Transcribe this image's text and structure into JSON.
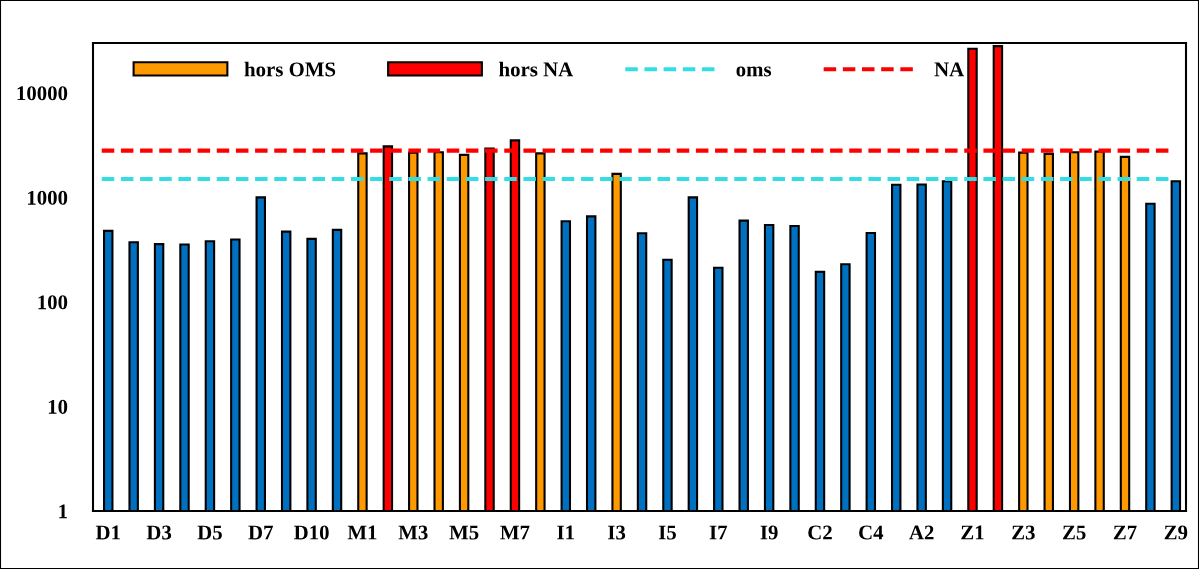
{
  "chart_data": {
    "type": "bar",
    "categories": [
      "D1",
      null,
      "D3",
      null,
      "D5",
      null,
      "D7",
      null,
      "D10",
      null,
      "M1",
      null,
      "M3",
      null,
      "M5",
      null,
      "M7",
      null,
      "I1",
      null,
      "I3",
      null,
      "I5",
      null,
      "I7",
      null,
      "I9",
      null,
      "C2",
      null,
      "C4",
      null,
      "A2",
      null,
      "Z1",
      null,
      "Z3",
      null,
      "Z5",
      null,
      "Z7",
      null,
      "Z9"
    ],
    "series": [
      {
        "color": "#0070c0",
        "values": [
          478,
          373,
          357,
          354,
          381,
          396,
          1000,
          471,
          401,
          489,
          null,
          null,
          null,
          null,
          null,
          null,
          null,
          null,
          591,
          659,
          null,
          454,
          253,
          1000,
          212,
          600,
          545,
          533,
          194,
          229,
          457,
          1320,
          1330,
          1430,
          null,
          null,
          null,
          null,
          null,
          null,
          null,
          870,
          1430
        ]
      },
      {
        "name": "hors OMS",
        "color": "#ff9900",
        "values": [
          null,
          null,
          null,
          null,
          null,
          null,
          null,
          null,
          null,
          null,
          2640,
          null,
          2680,
          2700,
          2550,
          null,
          null,
          2640,
          null,
          null,
          1680,
          null,
          null,
          null,
          null,
          null,
          null,
          null,
          null,
          null,
          null,
          null,
          null,
          null,
          null,
          null,
          2680,
          2610,
          2700,
          2740,
          2440,
          null,
          null
        ]
      },
      {
        "name": "hors NA",
        "color": "#ff0000",
        "values": [
          null,
          null,
          null,
          null,
          null,
          null,
          null,
          null,
          null,
          null,
          null,
          3080,
          null,
          null,
          null,
          2930,
          3510,
          null,
          null,
          null,
          null,
          null,
          null,
          null,
          null,
          null,
          null,
          null,
          null,
          null,
          null,
          null,
          null,
          null,
          26400,
          28000,
          null,
          null,
          null,
          null,
          null,
          null,
          null
        ]
      }
    ],
    "ref_lines": [
      {
        "axis": "y",
        "value": 1500,
        "label": "oms",
        "color": "#33dde6",
        "line_style": "dashed"
      },
      {
        "axis": "y",
        "value": 2800,
        "label": "NA",
        "color": "#ff0000",
        "line_style": "dashed"
      }
    ],
    "log": "y",
    "ylim": [
      1,
      30000
    ],
    "yticks": [
      1,
      10,
      100,
      1000,
      10000
    ],
    "legend": "top left",
    "grid": false
  }
}
